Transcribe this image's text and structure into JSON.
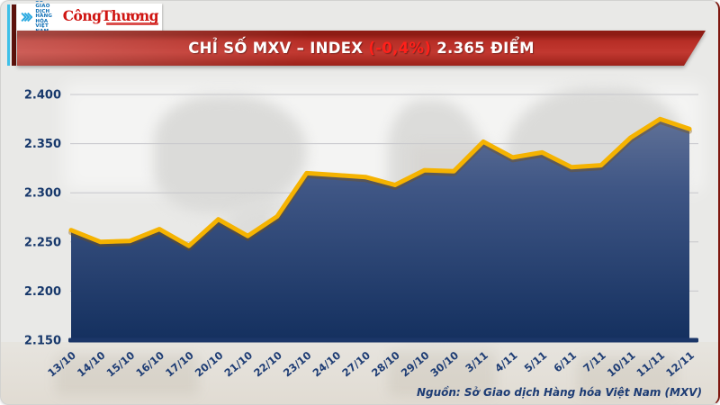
{
  "header": {
    "mxv_logo": {
      "text_lines": [
        "SỞ GIAO DỊCH",
        "HÀNG HÓA",
        "VIỆT NAM"
      ],
      "color": "#0e6eb5",
      "emblem_color": "#2aa9e0"
    },
    "congthuong_logo": {
      "text": "CôngThương",
      "color": "#cf1411"
    },
    "banner": {
      "title_prefix": "CHỈ SỐ MXV – INDEX ",
      "title_change": "(-0,4%)",
      "title_suffix": " 2.365 ĐIỂM",
      "bg_main": "#b72e26",
      "change_color": "#ff201a",
      "text_color": "#ffffff"
    }
  },
  "chart_data": {
    "type": "area",
    "title": "CHỈ SỐ MXV – INDEX (-0,4%) 2.365 ĐIỂM",
    "x": [
      "13/10",
      "14/10",
      "15/10",
      "16/10",
      "17/10",
      "20/10",
      "21/10",
      "22/10",
      "23/10",
      "24/10",
      "27/10",
      "28/10",
      "29/10",
      "30/10",
      "3/11",
      "4/11",
      "5/11",
      "6/11",
      "7/11",
      "10/11",
      "11/11",
      "12/11"
    ],
    "values": [
      2262,
      2250,
      2251,
      2263,
      2246,
      2273,
      2256,
      2276,
      2320,
      2318,
      2316,
      2308,
      2323,
      2322,
      2352,
      2336,
      2341,
      2326,
      2328,
      2356,
      2375,
      2365
    ],
    "ylim": [
      2150,
      2400
    ],
    "yticks": [
      {
        "v": 2400,
        "label": "2.400"
      },
      {
        "v": 2350,
        "label": "2.350"
      },
      {
        "v": 2300,
        "label": "2.300"
      },
      {
        "v": 2250,
        "label": "2.250"
      },
      {
        "v": 2200,
        "label": "2.200"
      },
      {
        "v": 2150,
        "label": "2.150"
      }
    ],
    "grid": "on",
    "legend": "none",
    "line_color": "#f5b301",
    "area_top_color": "#6b7a9d",
    "area_bottom_color": "#14305f",
    "axis_color": "#1b3668",
    "tick_label_color": "#1d3c74"
  },
  "footer": {
    "source": "Nguồn: Sở Giao dịch Hàng hóa Việt Nam (MXV)"
  }
}
